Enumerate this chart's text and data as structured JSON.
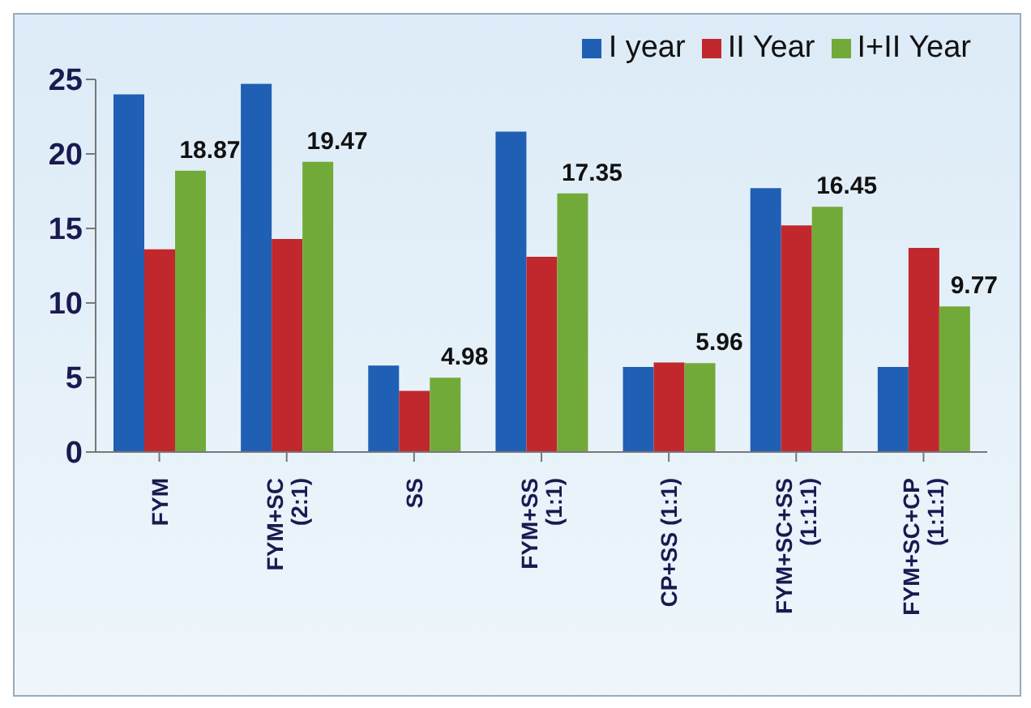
{
  "chart_data": {
    "type": "bar",
    "categories": [
      "FYM",
      "FYM+SC\n(2:1)",
      "SS",
      "FYM+SS\n(1:1)",
      "CP+SS (1:1)",
      "FYM+SC+SS\n(1:1:1)",
      "FYM+SC+CP\n(1:1:1)"
    ],
    "series": [
      {
        "name": "I year",
        "color": "#1f5fb4",
        "values": [
          24.0,
          24.7,
          5.8,
          21.5,
          5.7,
          17.7,
          5.7
        ]
      },
      {
        "name": "II Year",
        "color": "#c0282d",
        "values": [
          13.6,
          14.3,
          4.1,
          13.1,
          6.0,
          15.2,
          13.7
        ]
      },
      {
        "name": "I+II Year",
        "color": "#72aa3a",
        "values": [
          18.87,
          19.47,
          4.98,
          17.35,
          5.96,
          16.45,
          9.77
        ],
        "value_labels": [
          "18.87",
          "19.47",
          "4.98",
          "17.35",
          "5.96",
          "16.45",
          "9.77"
        ]
      }
    ],
    "ylim": [
      0,
      25
    ],
    "yticks": [
      0,
      5,
      10,
      15,
      20,
      25
    ],
    "grid": false,
    "legend": "top right"
  }
}
